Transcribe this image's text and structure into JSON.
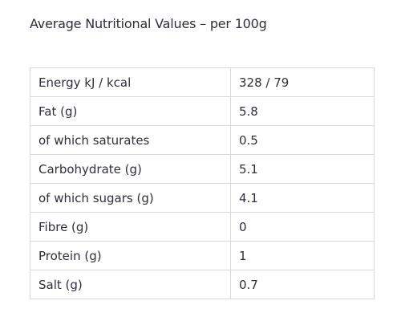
{
  "heading": "Average Nutritional Values – per 100g",
  "table": {
    "rows": [
      {
        "nutrient": "Energy kJ / kcal",
        "value": "328 / 79"
      },
      {
        "nutrient": "Fat (g)",
        "value": "5.8"
      },
      {
        "nutrient": "of which saturates",
        "value": "0.5"
      },
      {
        "nutrient": "Carbohydrate (g)",
        "value": "5.1"
      },
      {
        "nutrient": "of which sugars (g)",
        "value": "4.1"
      },
      {
        "nutrient": "Fibre (g)",
        "value": "0"
      },
      {
        "nutrient": "Protein (g)",
        "value": "1"
      },
      {
        "nutrient": "Salt (g)",
        "value": "0.7"
      }
    ]
  },
  "colors": {
    "text": "#2f2f3f",
    "border": "#d9d9d9",
    "background": "#ffffff"
  }
}
